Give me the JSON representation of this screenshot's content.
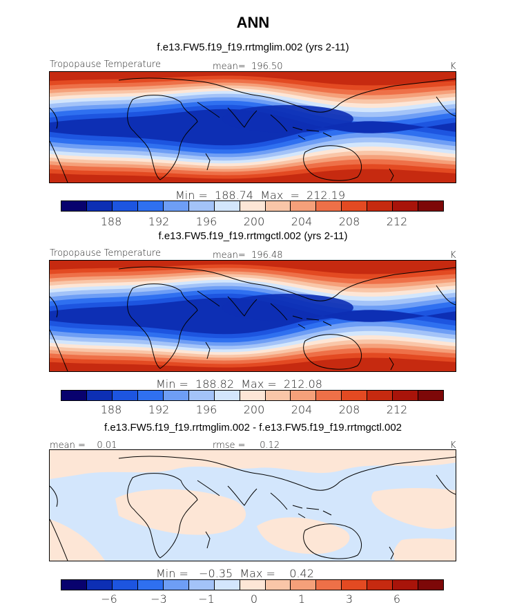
{
  "figure": {
    "title": "ANN",
    "colors": [
      "#08026e",
      "#0d2fb4",
      "#1d55e0",
      "#2f70f0",
      "#6e9ef5",
      "#a3c3f8",
      "#d3e6fc",
      "#fde6d6",
      "#f9c6a8",
      "#f5a07a",
      "#ee7048",
      "#e34a22",
      "#c62a10",
      "#a8140a",
      "#7d0808"
    ]
  },
  "panels": [
    {
      "title": "f.e13.FW5.f19_f19.rrtmglim.002 (yrs 2-11)",
      "left_label": "Tropopause Temperature",
      "mid_label": "mean=  196.50",
      "unit": "K",
      "minmax": "Min =  188.74  Max  =  212.19",
      "ticks": [
        "188",
        "192",
        "196",
        "200",
        "204",
        "208",
        "212"
      ]
    },
    {
      "title": "f.e13.FW5.f19_f19.rrtmgctl.002 (yrs 2-11)",
      "left_label": "Tropopause Temperature",
      "mid_label": "mean=  196.48",
      "unit": "K",
      "minmax": "Min =  188.82  Max =  212.08",
      "ticks": [
        "188",
        "192",
        "196",
        "200",
        "204",
        "208",
        "212"
      ]
    },
    {
      "title": "f.e13.FW5.f19_f19.rrtmglim.002 - f.e13.FW5.f19_f19.rrtmgctl.002",
      "left_label": "mean =    0.01",
      "mid_label": "rmse =     0.12",
      "unit": "K",
      "minmax": "Min =   −0.35  Max =    0.42",
      "ticks": [
        "−6",
        "−3",
        "−1",
        "0",
        "1",
        "3",
        "6"
      ]
    }
  ],
  "chart_data": [
    {
      "type": "heatmap",
      "title": "f.e13.FW5.f19_f19.rrtmglim.002 (yrs 2-11)",
      "variable": "Tropopause Temperature",
      "units": "K",
      "mean": 196.5,
      "min": 188.74,
      "max": 212.19,
      "colorbar_ticks": [
        188,
        192,
        196,
        200,
        204,
        208,
        212
      ]
    },
    {
      "type": "heatmap",
      "title": "f.e13.FW5.f19_f19.rrtmgctl.002 (yrs 2-11)",
      "variable": "Tropopause Temperature",
      "units": "K",
      "mean": 196.48,
      "min": 188.82,
      "max": 212.08,
      "colorbar_ticks": [
        188,
        192,
        196,
        200,
        204,
        208,
        212
      ]
    },
    {
      "type": "heatmap",
      "title": "f.e13.FW5.f19_f19.rrtmglim.002 - f.e13.FW5.f19_f19.rrtmgctl.002",
      "units": "K",
      "mean": 0.01,
      "rmse": 0.12,
      "min": -0.35,
      "max": 0.42,
      "colorbar_ticks": [
        -6,
        -3,
        -1,
        0,
        1,
        3,
        6
      ]
    }
  ]
}
